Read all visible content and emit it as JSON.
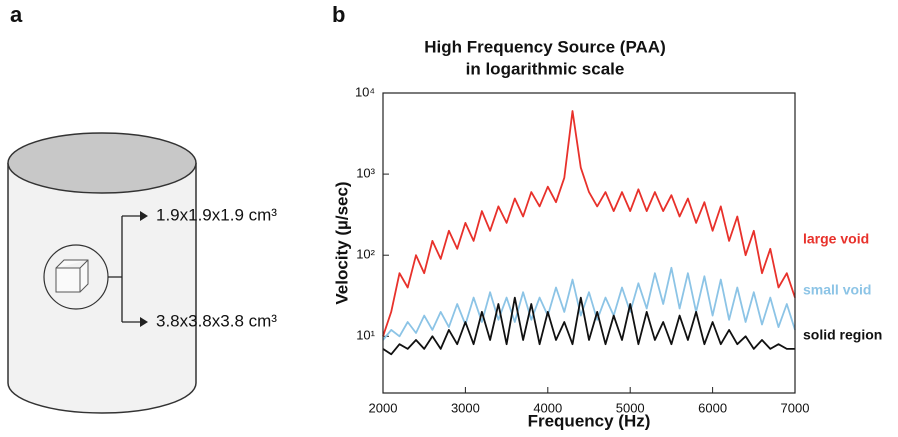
{
  "panels": {
    "a": "a",
    "b": "b"
  },
  "diagram": {
    "labels": [
      "1.9x1.9x1.9 cm³",
      "3.8x3.8x3.8 cm³"
    ]
  },
  "chart_data": {
    "type": "line",
    "title": "High Frequency Source (PAA)",
    "subtitle": "in logarithmic scale",
    "x_label": "Frequency (Hz)",
    "y_label": "Velocity (µ/sec)",
    "log_y": true,
    "x": [
      2000,
      2100,
      2200,
      2300,
      2400,
      2500,
      2600,
      2700,
      2800,
      2900,
      3000,
      3100,
      3200,
      3300,
      3400,
      3500,
      3600,
      3700,
      3800,
      3900,
      4000,
      4100,
      4200,
      4300,
      4400,
      4500,
      4600,
      4700,
      4800,
      4900,
      5000,
      5100,
      5200,
      5300,
      5400,
      5500,
      5600,
      5700,
      5800,
      5900,
      6000,
      6100,
      6200,
      6300,
      6400,
      6500,
      6600,
      6700,
      6800,
      6900,
      7000
    ],
    "series": [
      {
        "name": "large void",
        "color": "#e8312b",
        "values": [
          10,
          20,
          60,
          40,
          100,
          60,
          150,
          90,
          200,
          120,
          250,
          150,
          350,
          200,
          400,
          250,
          500,
          300,
          600,
          400,
          700,
          450,
          900,
          6000,
          1200,
          600,
          400,
          600,
          350,
          600,
          350,
          650,
          350,
          600,
          350,
          550,
          300,
          500,
          250,
          450,
          200,
          400,
          150,
          300,
          100,
          200,
          60,
          120,
          40,
          60,
          30
        ]
      },
      {
        "name": "small void",
        "color": "#8cc4e6",
        "values": [
          9,
          12,
          10,
          15,
          11,
          18,
          12,
          20,
          13,
          25,
          14,
          30,
          15,
          35,
          16,
          30,
          15,
          35,
          16,
          30,
          18,
          40,
          20,
          50,
          18,
          35,
          16,
          30,
          18,
          40,
          20,
          45,
          22,
          60,
          25,
          70,
          22,
          60,
          20,
          55,
          18,
          50,
          16,
          40,
          15,
          35,
          14,
          30,
          13,
          25,
          12
        ]
      },
      {
        "name": "solid region",
        "color": "#111111",
        "values": [
          7,
          6,
          8,
          7,
          9,
          7,
          10,
          7,
          12,
          8,
          15,
          8,
          20,
          9,
          25,
          8,
          30,
          9,
          25,
          8,
          20,
          9,
          15,
          8,
          30,
          9,
          20,
          8,
          18,
          9,
          25,
          8,
          20,
          9,
          15,
          8,
          18,
          9,
          20,
          8,
          15,
          8,
          12,
          8,
          10,
          7,
          9,
          7,
          8,
          7,
          7
        ]
      }
    ],
    "xlim": [
      2000,
      7000
    ],
    "xticks": [
      2000,
      3000,
      4000,
      5000,
      6000,
      7000
    ],
    "ylim": [
      2,
      10000
    ],
    "yticks": [
      {
        "value": 10,
        "label": "10¹"
      },
      {
        "value": 100,
        "label": "10²"
      },
      {
        "value": 1000,
        "label": "10³"
      },
      {
        "value": 10000,
        "label": "10⁴"
      }
    ]
  }
}
